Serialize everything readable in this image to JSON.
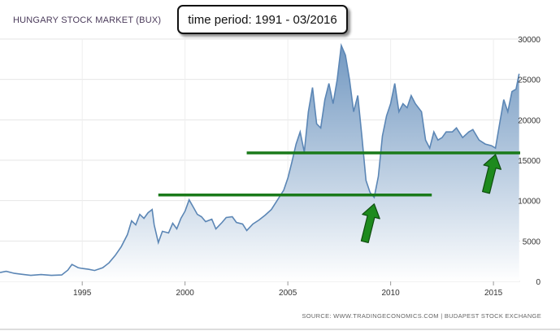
{
  "chart_data": {
    "type": "area",
    "title": "HUNGARY STOCK MARKET (BUX)",
    "source": "SOURCE: WWW.TRADINGECONOMICS.COM | BUDAPEST STOCK EXCHANGE",
    "xlim": [
      1991,
      2016.3
    ],
    "ylim": [
      0,
      30000
    ],
    "x_ticks": [
      1995,
      2000,
      2005,
      2010,
      2015
    ],
    "y_ticks": [
      0,
      5000,
      10000,
      15000,
      20000,
      25000,
      30000
    ],
    "grid": true,
    "legend": "none",
    "series": [
      {
        "points": [
          [
            1991.0,
            1100
          ],
          [
            1991.3,
            1250
          ],
          [
            1991.7,
            1000
          ],
          [
            1992.0,
            900
          ],
          [
            1992.5,
            750
          ],
          [
            1993.0,
            850
          ],
          [
            1993.5,
            750
          ],
          [
            1994.0,
            800
          ],
          [
            1994.3,
            1400
          ],
          [
            1994.5,
            2100
          ],
          [
            1994.8,
            1700
          ],
          [
            1995.0,
            1600
          ],
          [
            1995.3,
            1500
          ],
          [
            1995.6,
            1350
          ],
          [
            1996.0,
            1700
          ],
          [
            1996.3,
            2300
          ],
          [
            1996.6,
            3200
          ],
          [
            1996.9,
            4300
          ],
          [
            1997.2,
            5800
          ],
          [
            1997.4,
            7500
          ],
          [
            1997.6,
            7000
          ],
          [
            1997.8,
            8300
          ],
          [
            1998.0,
            7800
          ],
          [
            1998.2,
            8500
          ],
          [
            1998.4,
            8900
          ],
          [
            1998.5,
            7000
          ],
          [
            1998.7,
            4800
          ],
          [
            1998.9,
            6200
          ],
          [
            1999.2,
            6000
          ],
          [
            1999.4,
            7200
          ],
          [
            1999.6,
            6500
          ],
          [
            1999.8,
            7800
          ],
          [
            2000.0,
            8700
          ],
          [
            2000.2,
            10100
          ],
          [
            2000.4,
            9200
          ],
          [
            2000.6,
            8300
          ],
          [
            2000.8,
            8000
          ],
          [
            2001.0,
            7400
          ],
          [
            2001.3,
            7700
          ],
          [
            2001.5,
            6500
          ],
          [
            2001.8,
            7300
          ],
          [
            2002.0,
            7900
          ],
          [
            2002.3,
            8000
          ],
          [
            2002.5,
            7300
          ],
          [
            2002.8,
            7100
          ],
          [
            2003.0,
            6300
          ],
          [
            2003.3,
            7100
          ],
          [
            2003.6,
            7600
          ],
          [
            2003.9,
            8200
          ],
          [
            2004.2,
            8900
          ],
          [
            2004.5,
            10100
          ],
          [
            2004.8,
            11300
          ],
          [
            2005.0,
            12800
          ],
          [
            2005.2,
            14800
          ],
          [
            2005.4,
            17000
          ],
          [
            2005.6,
            18500
          ],
          [
            2005.8,
            16000
          ],
          [
            2006.0,
            21000
          ],
          [
            2006.2,
            24000
          ],
          [
            2006.4,
            19500
          ],
          [
            2006.6,
            19000
          ],
          [
            2006.8,
            22500
          ],
          [
            2007.0,
            24500
          ],
          [
            2007.2,
            22000
          ],
          [
            2007.4,
            25000
          ],
          [
            2007.6,
            29200
          ],
          [
            2007.8,
            28000
          ],
          [
            2008.0,
            25000
          ],
          [
            2008.2,
            21000
          ],
          [
            2008.4,
            23000
          ],
          [
            2008.6,
            18000
          ],
          [
            2008.8,
            12500
          ],
          [
            2009.0,
            11000
          ],
          [
            2009.2,
            10400
          ],
          [
            2009.4,
            13000
          ],
          [
            2009.6,
            18000
          ],
          [
            2009.8,
            20500
          ],
          [
            2010.0,
            22000
          ],
          [
            2010.2,
            24500
          ],
          [
            2010.4,
            21000
          ],
          [
            2010.6,
            22000
          ],
          [
            2010.8,
            21500
          ],
          [
            2011.0,
            23000
          ],
          [
            2011.2,
            22000
          ],
          [
            2011.5,
            21000
          ],
          [
            2011.7,
            17500
          ],
          [
            2011.9,
            16500
          ],
          [
            2012.1,
            18500
          ],
          [
            2012.3,
            17500
          ],
          [
            2012.5,
            17800
          ],
          [
            2012.7,
            18500
          ],
          [
            2013.0,
            18500
          ],
          [
            2013.2,
            19000
          ],
          [
            2013.5,
            17800
          ],
          [
            2013.8,
            18500
          ],
          [
            2014.0,
            18800
          ],
          [
            2014.3,
            17500
          ],
          [
            2014.6,
            17000
          ],
          [
            2014.9,
            16800
          ],
          [
            2015.1,
            16500
          ],
          [
            2015.3,
            19500
          ],
          [
            2015.5,
            22500
          ],
          [
            2015.7,
            21000
          ],
          [
            2015.9,
            23500
          ],
          [
            2016.1,
            23800
          ],
          [
            2016.25,
            25700
          ]
        ]
      }
    ],
    "annotations": {
      "period_label": "time period: 1991 - 03/2016",
      "support_lines": [
        {
          "x_start": 1998.7,
          "x_end": 2012.0,
          "y": 10700
        },
        {
          "x_start": 2003.0,
          "x_end": 2016.3,
          "y": 15900
        }
      ],
      "arrows": [
        {
          "x": 2009.2,
          "y": 10400
        },
        {
          "x": 2015.1,
          "y": 16500
        }
      ],
      "colors": {
        "line": "#5b86b5",
        "fill_top": "#6b93be",
        "fill_bottom": "#ffffff",
        "support": "#1a7a1a",
        "arrow": "#1d8a1d",
        "arrow_edge": "#0f4d0f"
      }
    }
  }
}
